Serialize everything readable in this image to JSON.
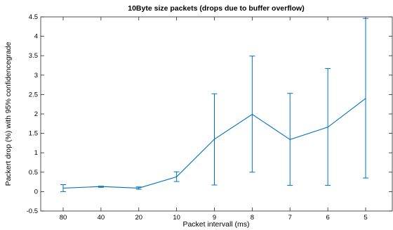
{
  "chart_data": {
    "type": "line",
    "title": "10Byte size packets (drops due to buffer overflow)",
    "xlabel": "Packet intervall (ms)",
    "ylabel": "Packert drop (%) with 95% confidencegrade",
    "categories": [
      "80",
      "40",
      "20",
      "10",
      "9",
      "8",
      "7",
      "6",
      "5"
    ],
    "series": [
      {
        "values": [
          0.09,
          0.13,
          0.09,
          0.38,
          1.35,
          1.99,
          1.34,
          1.66,
          2.4
        ],
        "error_low": [
          0.0,
          0.11,
          0.06,
          0.26,
          0.17,
          0.5,
          0.16,
          0.16,
          0.35
        ],
        "error_high": [
          0.18,
          0.14,
          0.12,
          0.51,
          2.52,
          3.49,
          2.53,
          3.17,
          4.46
        ]
      }
    ],
    "ylim": [
      -0.5,
      4.5
    ],
    "yticks": [
      "-0.5",
      "0",
      "0.5",
      "1",
      "1.5",
      "2",
      "2.5",
      "3",
      "3.5",
      "4",
      "4.5"
    ],
    "grid": false,
    "colors": {
      "series": "#0072bd",
      "axes": "#262626"
    }
  }
}
